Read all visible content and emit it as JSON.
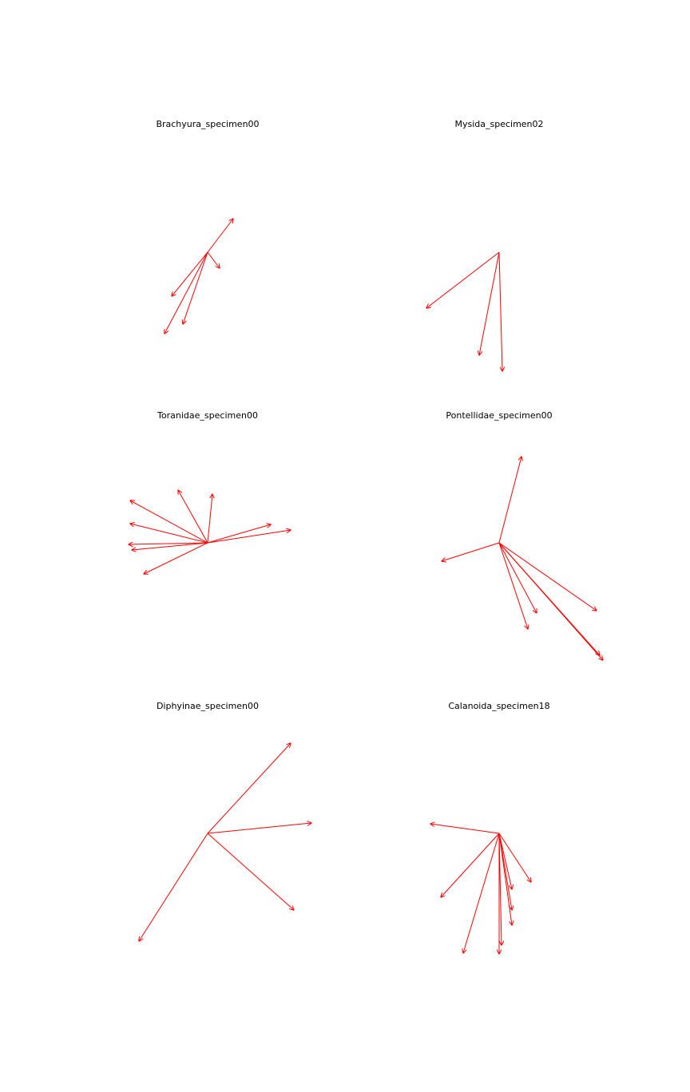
{
  "style": {
    "arrow_color": "#ff0000",
    "title_color": "#000000",
    "background": "#ffffff"
  },
  "panels": [
    {
      "title": "Brachyura_specimen00",
      "vectors": [
        [
          32,
          -42
        ],
        [
          15,
          20
        ],
        [
          -45,
          55
        ],
        [
          -54,
          102
        ],
        [
          -31,
          90
        ]
      ]
    },
    {
      "title": "Mysida_specimen02",
      "vectors": [
        [
          -91,
          70
        ],
        [
          -25,
          129
        ],
        [
          4,
          149
        ]
      ]
    },
    {
      "title": "Toranidae_specimen00",
      "vectors": [
        [
          -97,
          -53
        ],
        [
          -97,
          -24
        ],
        [
          -99,
          2
        ],
        [
          -95,
          9
        ],
        [
          -80,
          39
        ],
        [
          -37,
          -66
        ],
        [
          6,
          -61
        ],
        [
          79,
          -23
        ],
        [
          104,
          -16
        ]
      ]
    },
    {
      "title": "Pontellidae_specimen00",
      "vectors": [
        [
          28,
          -108
        ],
        [
          -72,
          23
        ],
        [
          122,
          85
        ],
        [
          126,
          141
        ],
        [
          130,
          147
        ],
        [
          47,
          88
        ],
        [
          36,
          108
        ]
      ]
    },
    {
      "title": "Diphyinae_specimen00",
      "vectors": [
        [
          104,
          -113
        ],
        [
          130,
          -13
        ],
        [
          108,
          96
        ],
        [
          -86,
          135
        ]
      ]
    },
    {
      "title": "Calanoida_specimen18",
      "vectors": [
        [
          -86,
          -12
        ],
        [
          -73,
          80
        ],
        [
          40,
          61
        ],
        [
          16,
          70
        ],
        [
          16,
          96
        ],
        [
          16,
          115
        ],
        [
          3,
          140
        ],
        [
          0,
          151
        ],
        [
          -45,
          150
        ]
      ]
    }
  ]
}
